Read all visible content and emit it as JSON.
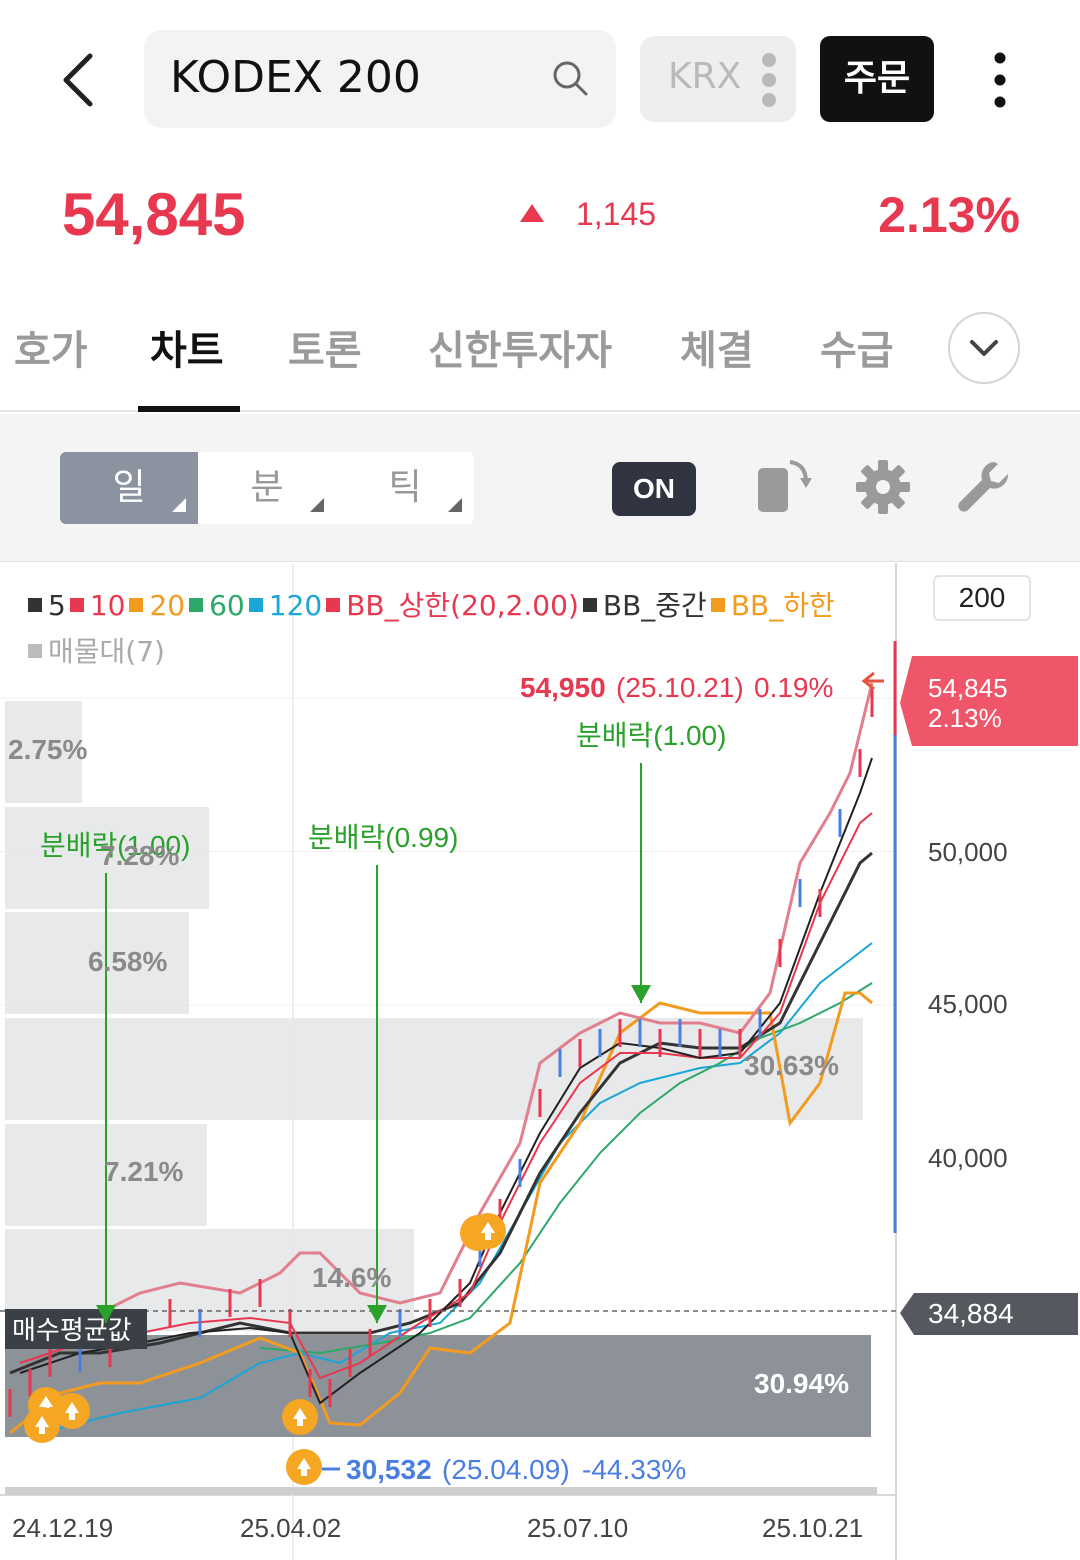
{
  "header": {
    "search_value": "KODEX 200",
    "market": "KRX",
    "order_label": "주문",
    "icons": [
      "back-arrow-icon",
      "search-icon",
      "vertical-dots-icon",
      "more-icon"
    ]
  },
  "price": {
    "current": "54,845",
    "change": "1,145",
    "change_pct": "2.13%",
    "direction": "up",
    "color": "#e8384f"
  },
  "tabs": [
    {
      "label": "호가",
      "active": false
    },
    {
      "label": "차트",
      "active": true
    },
    {
      "label": "토론",
      "active": false
    },
    {
      "label": "신한투자자",
      "active": false
    },
    {
      "label": "체결",
      "active": false
    },
    {
      "label": "수급",
      "active": false
    }
  ],
  "toolbar": {
    "periods": [
      {
        "label": "일",
        "active": true
      },
      {
        "label": "분",
        "active": false
      },
      {
        "label": "틱",
        "active": false
      }
    ],
    "on_label": "ON",
    "icons": [
      "rotate-screen-icon",
      "gear-icon",
      "wrench-icon"
    ]
  },
  "chart": {
    "scale_value": "200",
    "legend": [
      {
        "label": "5",
        "color": "#333333"
      },
      {
        "label": "10",
        "color": "#e8384f"
      },
      {
        "label": "20",
        "color": "#f29b1e"
      },
      {
        "label": "60",
        "color": "#2ea86a"
      },
      {
        "label": "120",
        "color": "#1aa6d6"
      },
      {
        "label": "BB_상한(20,2.00)",
        "color": "#e8384f"
      },
      {
        "label": "BB_중간",
        "color": "#333333"
      },
      {
        "label": "BB_하한",
        "color": "#f29b1e"
      },
      {
        "label": "매물대(7)",
        "color": "#bbbbbb"
      }
    ],
    "y_axis": [
      "50,000",
      "45,000",
      "40,000"
    ],
    "x_axis": [
      "24.12.19",
      "25.04.02",
      "25.07.10",
      "25.10.21"
    ],
    "current_price_tag": {
      "price": "54,845",
      "pct": "2.13%"
    },
    "avg_price_tag": "34,884",
    "avg_price_label": "매수평균값",
    "high_annotation": {
      "price": "54,950",
      "date": "(25.10.21)",
      "pct": "0.19%"
    },
    "low_annotation": {
      "price": "30,532",
      "date": "(25.04.09)",
      "pct": "-44.33%"
    },
    "dividends": [
      "분배락(1.00)",
      "분배락(0.99)",
      "분배락(1.00)"
    ],
    "volume_profile_pcts": [
      "2.75%",
      "7.28%",
      "6.58%",
      "30.63%",
      "7.21%",
      "14.6%",
      "30.94%"
    ]
  }
}
